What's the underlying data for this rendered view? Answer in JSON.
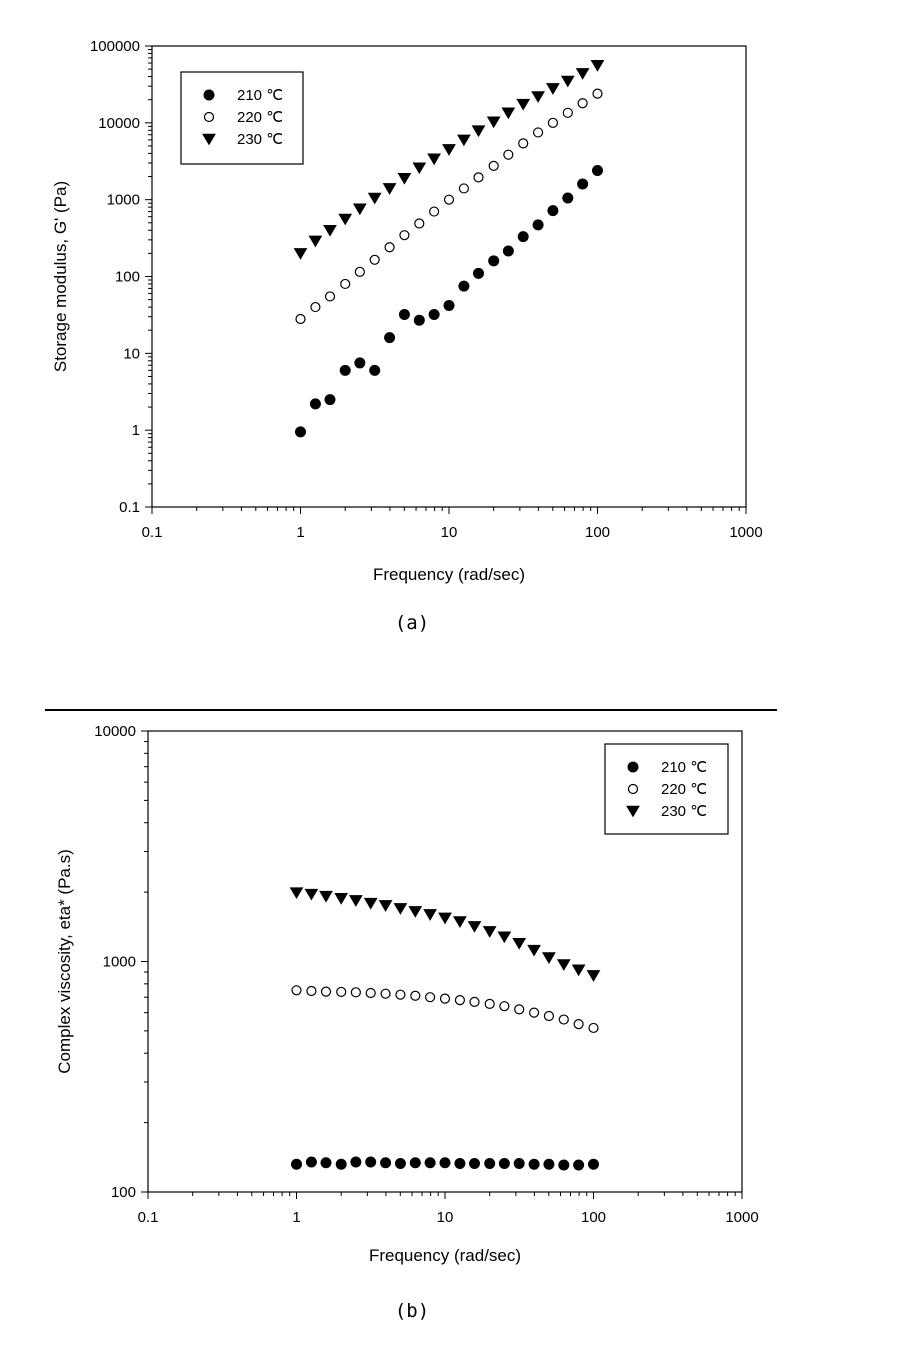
{
  "chart_data": [
    {
      "id": "a",
      "type": "scatter",
      "caption": "(a)",
      "xlabel": "Frequency (rad/sec)",
      "ylabel": "Storage modulus, G' (Pa)",
      "xscale": "log",
      "yscale": "log",
      "xlim": [
        0.1,
        1000
      ],
      "ylim": [
        0.1,
        100000
      ],
      "x_ticks": [
        0.1,
        1,
        10,
        100,
        1000
      ],
      "x_tick_labels": [
        "0.1",
        "1",
        "10",
        "100",
        "1000"
      ],
      "y_ticks": [
        0.1,
        1,
        10,
        100,
        1000,
        10000,
        100000
      ],
      "y_tick_labels": [
        "0.1",
        "1",
        "10",
        "100",
        "1000",
        "10000",
        "100000"
      ],
      "legend_position": "top-left",
      "series": [
        {
          "name": "210 ℃",
          "marker": "filled-circle",
          "x": [
            1,
            1.26,
            1.58,
            2,
            2.51,
            3.16,
            3.98,
            5.01,
            6.31,
            7.94,
            10,
            12.6,
            15.8,
            20,
            25.1,
            31.6,
            39.8,
            50.1,
            63.1,
            79.4,
            100
          ],
          "y": [
            0.95,
            2.2,
            2.5,
            6,
            7.5,
            6,
            16,
            32,
            27,
            32,
            42,
            75,
            110,
            160,
            215,
            330,
            470,
            720,
            1050,
            1600,
            2400
          ]
        },
        {
          "name": "220 ℃",
          "marker": "open-circle",
          "x": [
            1,
            1.26,
            1.58,
            2,
            2.51,
            3.16,
            3.98,
            5.01,
            6.31,
            7.94,
            10,
            12.6,
            15.8,
            20,
            25.1,
            31.6,
            39.8,
            50.1,
            63.1,
            79.4,
            100
          ],
          "y": [
            28,
            40,
            55,
            80,
            115,
            165,
            240,
            345,
            490,
            700,
            1000,
            1400,
            1950,
            2750,
            3850,
            5400,
            7500,
            10000,
            13500,
            18000,
            24000
          ]
        },
        {
          "name": "230 ℃",
          "marker": "filled-triangle-down",
          "x": [
            1,
            1.26,
            1.58,
            2,
            2.51,
            3.16,
            3.98,
            5.01,
            6.31,
            7.94,
            10,
            12.6,
            15.8,
            20,
            25.1,
            31.6,
            39.8,
            50.1,
            63.1,
            79.4,
            100
          ],
          "y": [
            200,
            290,
            400,
            560,
            760,
            1050,
            1400,
            1900,
            2600,
            3400,
            4500,
            6000,
            7900,
            10300,
            13500,
            17500,
            22000,
            28000,
            35000,
            44000,
            56000
          ]
        }
      ]
    },
    {
      "id": "b",
      "type": "scatter",
      "caption": "(b)",
      "xlabel": "Frequency (rad/sec)",
      "ylabel": "Complex viscosity, eta* (Pa.s)",
      "xscale": "log",
      "yscale": "log",
      "xlim": [
        0.1,
        1000
      ],
      "ylim": [
        100,
        10000
      ],
      "x_ticks": [
        0.1,
        1,
        10,
        100,
        1000
      ],
      "x_tick_labels": [
        "0.1",
        "1",
        "10",
        "100",
        "1000"
      ],
      "y_ticks": [
        100,
        1000,
        10000
      ],
      "y_tick_labels": [
        "100",
        "1000",
        "10000"
      ],
      "legend_position": "top-right",
      "series": [
        {
          "name": "210 ℃",
          "marker": "filled-circle",
          "x": [
            1,
            1.26,
            1.58,
            2,
            2.51,
            3.16,
            3.98,
            5.01,
            6.31,
            7.94,
            10,
            12.6,
            15.8,
            20,
            25.1,
            31.6,
            39.8,
            50.1,
            63.1,
            79.4,
            100
          ],
          "y": [
            132,
            135,
            134,
            132,
            135,
            135,
            134,
            133,
            134,
            134,
            134,
            133,
            133,
            133,
            133,
            133,
            132,
            132,
            131,
            131,
            132
          ]
        },
        {
          "name": "220 ℃",
          "marker": "open-circle",
          "x": [
            1,
            1.26,
            1.58,
            2,
            2.51,
            3.16,
            3.98,
            5.01,
            6.31,
            7.94,
            10,
            12.6,
            15.8,
            20,
            25.1,
            31.6,
            39.8,
            50.1,
            63.1,
            79.4,
            100
          ],
          "y": [
            750,
            745,
            740,
            738,
            735,
            730,
            725,
            718,
            710,
            700,
            690,
            680,
            668,
            655,
            640,
            620,
            600,
            580,
            560,
            535,
            515
          ]
        },
        {
          "name": "230 ℃",
          "marker": "filled-triangle-down",
          "x": [
            1,
            1.26,
            1.58,
            2,
            2.51,
            3.16,
            3.98,
            5.01,
            6.31,
            7.94,
            10,
            12.6,
            15.8,
            20,
            25.1,
            31.6,
            39.8,
            50.1,
            63.1,
            79.4,
            100
          ],
          "y": [
            1990,
            1960,
            1920,
            1880,
            1840,
            1790,
            1750,
            1700,
            1650,
            1600,
            1545,
            1490,
            1420,
            1350,
            1280,
            1200,
            1120,
            1040,
            970,
            920,
            870
          ]
        }
      ]
    }
  ]
}
